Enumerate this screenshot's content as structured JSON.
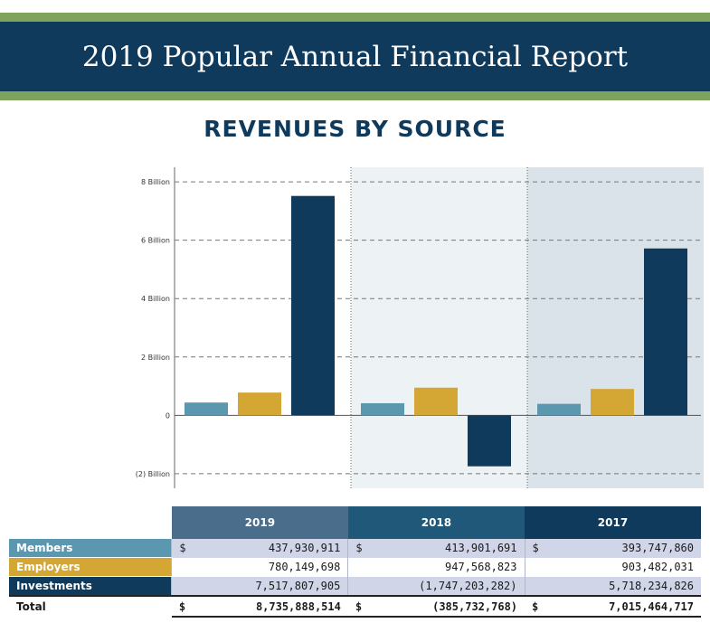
{
  "banner": {
    "title": "2019 Popular Annual Financial Report"
  },
  "subtitle": "REVENUES BY SOURCE",
  "colors": {
    "banner": "#0f3a5c",
    "band": "#7fa35c",
    "members": "#5b98b0",
    "employers": "#d4a633",
    "investments": "#0f3a5c",
    "panel_2018": "#edf2f5",
    "panel_2017": "#dbe3ea"
  },
  "chart_data": {
    "type": "bar",
    "categories": [
      "2019",
      "2018",
      "2017"
    ],
    "series": [
      {
        "name": "Members",
        "values": [
          437930911,
          413901691,
          393747860
        ]
      },
      {
        "name": "Employers",
        "values": [
          780149698,
          947568823,
          903482031
        ]
      },
      {
        "name": "Investments",
        "values": [
          7517807905,
          -1747203282,
          5718234826
        ]
      }
    ],
    "ylim": [
      -2500000000,
      8500000000
    ],
    "yticks": [
      {
        "value": 8000000000,
        "label": "8 Billion"
      },
      {
        "value": 6000000000,
        "label": "6 Billion"
      },
      {
        "value": 4000000000,
        "label": "4 Billion"
      },
      {
        "value": 2000000000,
        "label": "2 Billion"
      },
      {
        "value": 0,
        "label": "0"
      },
      {
        "value": -2000000000,
        "label": "(2) Billion"
      }
    ],
    "grid": "dashed-horizontal"
  },
  "table": {
    "years": [
      "2019",
      "2018",
      "2017"
    ],
    "rows": [
      {
        "label": "Members",
        "values": [
          "437,930,911",
          "413,901,691",
          "393,747,860"
        ],
        "currency": true
      },
      {
        "label": "Employers",
        "values": [
          "780,149,698",
          "947,568,823",
          "903,482,031"
        ],
        "currency": false
      },
      {
        "label": "Investments",
        "values": [
          "7,517,807,905",
          "(1,747,203,282)",
          "5,718,234,826"
        ],
        "currency": false
      }
    ],
    "total": {
      "label": "Total",
      "values": [
        "8,735,888,514",
        "(385,732,768)",
        "7,015,464,717"
      ]
    },
    "currency_symbol": "$"
  }
}
